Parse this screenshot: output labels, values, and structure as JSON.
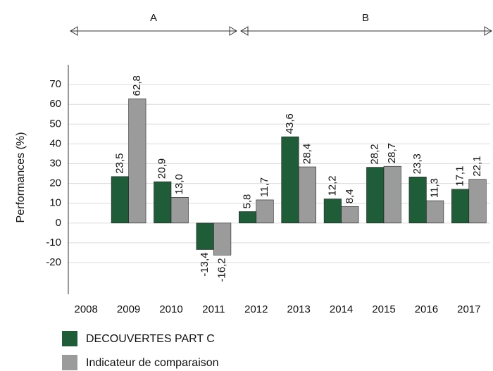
{
  "chart_data": {
    "type": "bar",
    "annotations": [
      "A",
      "B"
    ],
    "ylabel": "Performances (%)",
    "categories": [
      "2008",
      "2009",
      "2010",
      "2011",
      "2012",
      "2013",
      "2014",
      "2015",
      "2016",
      "2017"
    ],
    "series": [
      {
        "name": "DECOUVERTES  PART C",
        "color": "#1f5c38",
        "values": [
          null,
          23.5,
          20.9,
          -13.4,
          5.8,
          43.6,
          12.2,
          28.2,
          23.3,
          17.1
        ],
        "value_labels": [
          null,
          "23,5",
          "20,9",
          "-13,4",
          "5,8",
          "43,6",
          "12,2",
          "28,2",
          "23,3",
          "17,1"
        ]
      },
      {
        "name": "Indicateur de comparaison",
        "color": "#9b9b9b",
        "values": [
          null,
          62.8,
          13.0,
          -16.2,
          11.7,
          28.4,
          8.4,
          28.7,
          11.3,
          22.1
        ],
        "value_labels": [
          null,
          "62,8",
          "13,0",
          "-16,2",
          "11,7",
          "28,4",
          "8,4",
          "28,7",
          "11,3",
          "22,1"
        ]
      }
    ],
    "ylim": [
      -36,
      80
    ],
    "yticks": [
      70,
      60,
      50,
      40,
      30,
      20,
      10,
      0,
      -10,
      -20
    ],
    "grid": true
  }
}
